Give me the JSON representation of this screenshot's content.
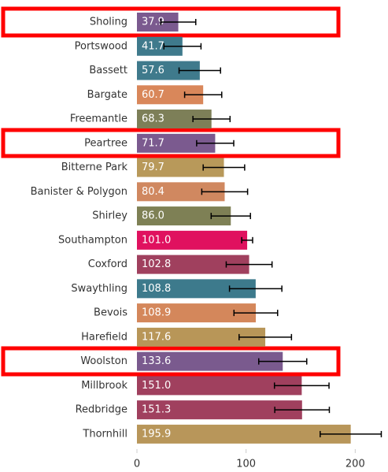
{
  "chart_data": {
    "type": "bar",
    "orientation": "horizontal",
    "categories": [
      "Sholing",
      "Portswood",
      "Bassett",
      "Bargate",
      "Freemantle",
      "Peartree",
      "Bitterne Park",
      "Banister & Polygon",
      "Shirley",
      "Southampton",
      "Coxford",
      "Swaythling",
      "Bevois",
      "Harefield",
      "Woolston",
      "Millbrook",
      "Redbridge",
      "Thornhill"
    ],
    "values": [
      37.9,
      41.7,
      57.6,
      60.7,
      68.3,
      71.7,
      79.7,
      80.4,
      86.0,
      101.0,
      102.8,
      108.8,
      108.9,
      117.6,
      133.6,
      151.0,
      151.3,
      195.9
    ],
    "value_labels": [
      "37.9",
      "41.7",
      "57.6",
      "60.7",
      "68.3",
      "71.7",
      "79.7",
      "80.4",
      "86.0",
      "101.0",
      "102.8",
      "108.8",
      "108.9",
      "117.6",
      "133.6",
      "151.0",
      "151.3",
      "195.9"
    ],
    "errors": [
      16,
      17,
      19,
      17,
      17,
      17,
      19,
      21,
      18,
      5,
      21,
      24,
      20,
      24,
      22,
      25,
      25,
      28
    ],
    "colors": [
      "#7b5a8f",
      "#3f7a8c",
      "#3f7a8c",
      "#d9875a",
      "#7d7f58",
      "#7b5a8f",
      "#b8995a",
      "#d08860",
      "#7e8055",
      "#e0115f",
      "#a0405e",
      "#3d7a8c",
      "#d4875b",
      "#b89658",
      "#7a5a8e",
      "#a0405e",
      "#a0405e",
      "#b8965a"
    ],
    "xlim": [
      0,
      225
    ],
    "xticks": [
      0,
      100,
      200
    ]
  }
}
